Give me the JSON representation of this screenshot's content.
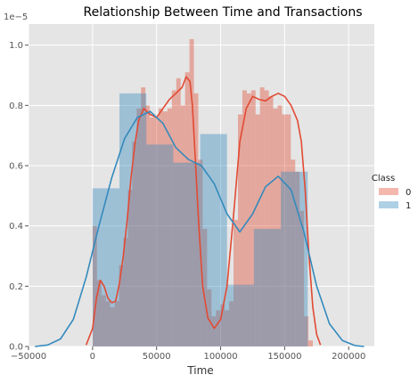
{
  "chart_data": {
    "type": "histogram-kde",
    "title": "Relationship Between Time and Transactions",
    "xlabel": "Time",
    "ylabel": "",
    "y_offset_text": "1e−5",
    "xlim": [
      -50000,
      220000
    ],
    "ylim": [
      0,
      1.07e-05
    ],
    "x_ticks": [
      -50000,
      0,
      50000,
      100000,
      150000,
      200000
    ],
    "x_tick_labels": [
      "−50000",
      "0",
      "50000",
      "100000",
      "150000",
      "200000"
    ],
    "y_ticks": [
      0,
      2e-06,
      4e-06,
      6e-06,
      8e-06,
      1e-05
    ],
    "y_tick_labels": [
      "0.0",
      "0.2",
      "0.4",
      "0.6",
      "0.8",
      "1.0"
    ],
    "grid": true,
    "legend": {
      "title": "Class",
      "placement": "right",
      "entries": [
        "0",
        "1"
      ]
    },
    "series": [
      {
        "name": "0",
        "color": "#E24A33",
        "hist_bins": {
          "start": 0,
          "width": 3440,
          "heights": [
            4e-06,
            2.2e-06,
            1.7e-06,
            1.5e-06,
            1.3e-06,
            1.5e-06,
            2.7e-06,
            3.6e-06,
            5.2e-06,
            6.8e-06,
            7.9e-06,
            8.6e-06,
            8e-06,
            7.6e-06,
            7.6e-06,
            7.9e-06,
            7.8e-06,
            7.9e-06,
            8.5e-06,
            8.9e-06,
            8e-06,
            9.1e-06,
            1.02e-05,
            8.4e-06,
            6.2e-06,
            3.9e-06,
            1.9e-06,
            1e-06,
            1.2e-06,
            1.4e-06,
            1.2e-06,
            1.5e-06,
            4.2e-06,
            7.7e-06,
            8.5e-06,
            8.4e-06,
            8.5e-06,
            7.7e-06,
            8.6e-06,
            8.5e-06,
            8.3e-06,
            7.9e-06,
            8e-06,
            7.7e-06,
            7.7e-06,
            6.2e-06,
            5.8e-06,
            4.5e-06,
            1e-06,
            2e-07
          ]
        },
        "kde": {
          "x": [
            -5000,
            0,
            3000,
            6000,
            9000,
            12000,
            15000,
            18000,
            21000,
            24000,
            27000,
            30000,
            33000,
            36000,
            40000,
            45000,
            50000,
            55000,
            60000,
            65000,
            70000,
            73000,
            76000,
            78000,
            80000,
            83000,
            86000,
            90000,
            95000,
            100000,
            105000,
            110000,
            115000,
            120000,
            125000,
            130000,
            135000,
            140000,
            145000,
            150000,
            155000,
            160000,
            163000,
            166000,
            169000,
            172000,
            175000,
            178000
          ],
          "y": [
            5e-08,
            6e-07,
            1.6e-06,
            2.2e-06,
            2e-06,
            1.6e-06,
            1.45e-06,
            1.5e-06,
            2.1e-06,
            3e-06,
            4.2e-06,
            5.6e-06,
            6.7e-06,
            7.5e-06,
            7.9e-06,
            7.7e-06,
            7.6e-06,
            7.9e-06,
            8.2e-06,
            8.4e-06,
            8.6e-06,
            8.95e-06,
            8.8e-06,
            8e-06,
            6.4e-06,
            4e-06,
            2e-06,
            9.5e-07,
            6e-07,
            9e-07,
            2e-06,
            4.3e-06,
            6.8e-06,
            7.9e-06,
            8.3e-06,
            8.2e-06,
            8.15e-06,
            8.3e-06,
            8.4e-06,
            8.3e-06,
            8e-06,
            7.5e-06,
            6.8e-06,
            5.2e-06,
            3e-06,
            1.3e-06,
            4e-07,
            5e-08
          ]
        }
      },
      {
        "name": "1",
        "color": "#348ABD",
        "hist_bins": {
          "start": 0,
          "width": 21000,
          "heights": [
            5.25e-06,
            8.4e-06,
            6.7e-06,
            6.1e-06,
            7.05e-06,
            2.05e-06,
            3.9e-06,
            5.8e-06
          ]
        },
        "kde": {
          "x": [
            -45000,
            -35000,
            -25000,
            -15000,
            -5000,
            5000,
            15000,
            25000,
            35000,
            45000,
            55000,
            65000,
            75000,
            85000,
            95000,
            105000,
            115000,
            125000,
            135000,
            145000,
            155000,
            165000,
            175000,
            185000,
            195000,
            205000,
            212000
          ],
          "y": [
            0.0,
            5e-08,
            2.5e-07,
            9e-07,
            2.3e-06,
            4e-06,
            5.6e-06,
            6.9e-06,
            7.6e-06,
            7.8e-06,
            7.4e-06,
            6.6e-06,
            6.2e-06,
            6e-06,
            5.4e-06,
            4.4e-06,
            3.8e-06,
            4.4e-06,
            5.3e-06,
            5.65e-06,
            5.2e-06,
            3.8e-06,
            2e-06,
            7.5e-07,
            2e-07,
            3e-08,
            0.0
          ]
        }
      }
    ]
  }
}
